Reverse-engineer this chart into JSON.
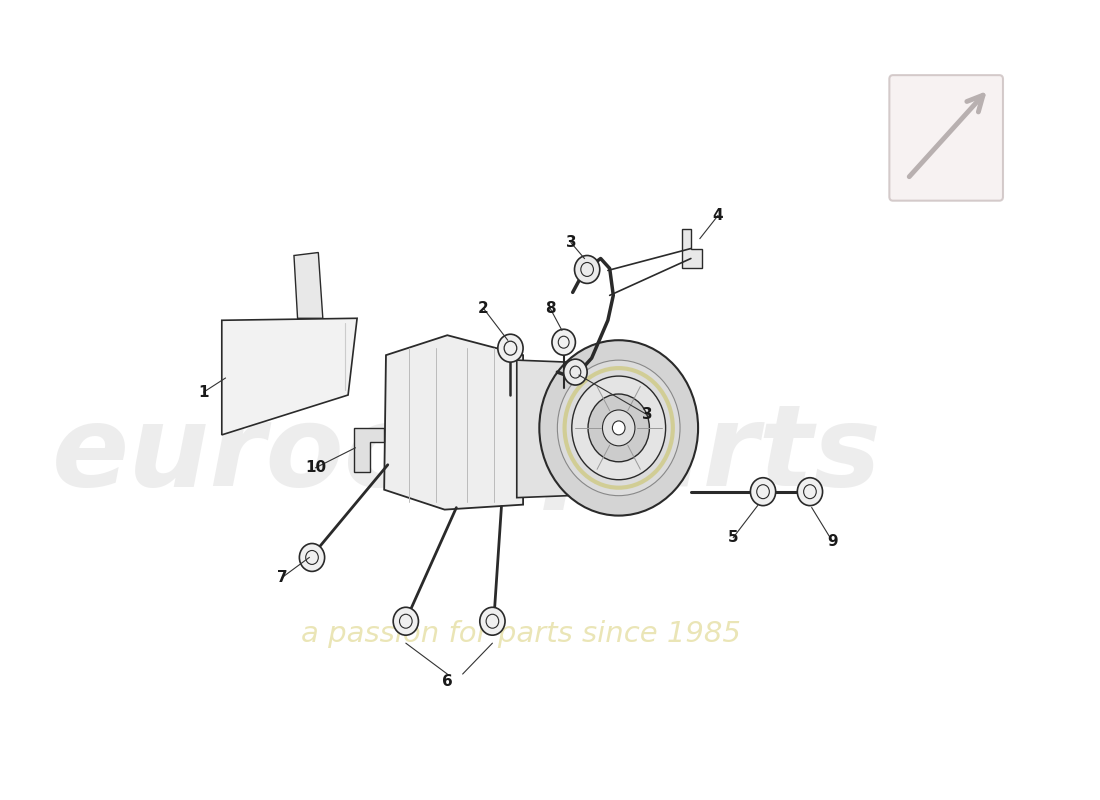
{
  "bg_color": "#ffffff",
  "line_color": "#2a2a2a",
  "label_fontsize": 11,
  "watermark_main": "eurocarparts",
  "watermark_sub": "a passion for parts since 1985",
  "parts": [
    "1",
    "2",
    "3",
    "4",
    "5",
    "6",
    "7",
    "8",
    "9",
    "10"
  ]
}
